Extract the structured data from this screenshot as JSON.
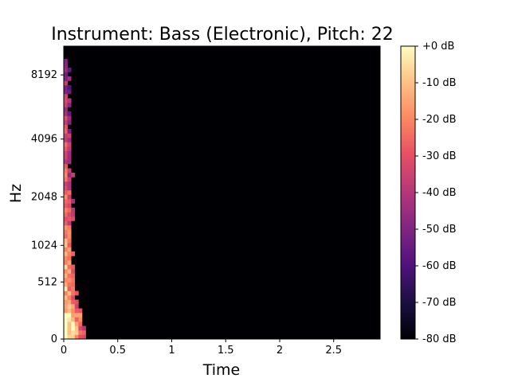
{
  "chart_data": {
    "type": "heatmap",
    "title": "Instrument: Bass (Electronic), Pitch: 22",
    "xlabel": "Time",
    "ylabel": "Hz",
    "y_scale": "log-like (mel)",
    "x_ticks": [
      "0",
      "0.5",
      "1",
      "1.5",
      "2",
      "2.5"
    ],
    "x_tick_values": [
      0,
      0.5,
      1,
      1.5,
      2,
      2.5
    ],
    "y_ticks": [
      "0",
      "512",
      "1024",
      "2048",
      "4096",
      "8192"
    ],
    "y_tick_values": [
      0,
      512,
      1024,
      2048,
      4096,
      8192
    ],
    "xlim": [
      0,
      2.93
    ],
    "colorbar": {
      "ticks": [
        "+0 dB",
        "-10 dB",
        "-20 dB",
        "-30 dB",
        "-40 dB",
        "-50 dB",
        "-60 dB",
        "-70 dB",
        "-80 dB"
      ],
      "tick_values": [
        0,
        -10,
        -20,
        -30,
        -40,
        -50,
        -60,
        -70,
        -80
      ],
      "range": [
        -80,
        0
      ],
      "colormap": "magma"
    },
    "colors": {
      "background": "#000004",
      "low": "#000004",
      "mid": "#b5367a",
      "high": "#fcfdbf"
    }
  }
}
